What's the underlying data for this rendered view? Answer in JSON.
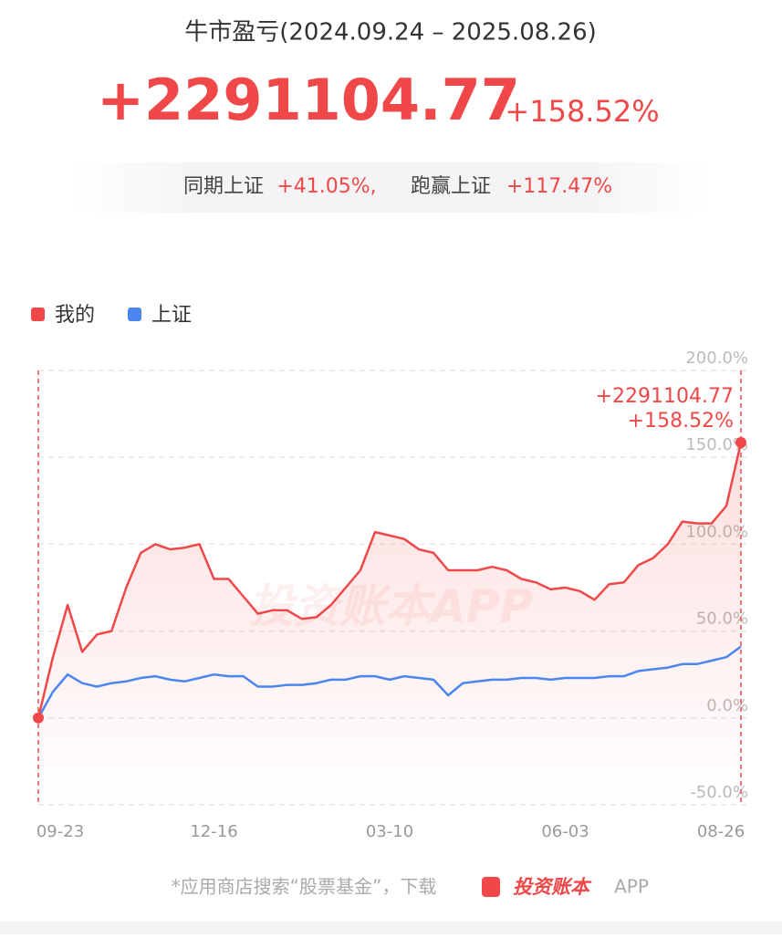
{
  "header": {
    "title": "牛市盈亏(2024.09.24 – 2025.08.26)",
    "profit": "+2291104.77",
    "return": "+158.52%",
    "benchmark_label": "同期上证",
    "benchmark_return": "+41.05%,",
    "excess_label": "跑赢上证",
    "excess_return": "+117.47%"
  },
  "chart_data": {
    "type": "line",
    "categories": [
      "09-23",
      null,
      null,
      null,
      null,
      null,
      null,
      null,
      null,
      null,
      null,
      null,
      "12-16",
      null,
      null,
      null,
      null,
      null,
      null,
      null,
      null,
      null,
      null,
      null,
      "03-10",
      null,
      null,
      null,
      null,
      null,
      null,
      null,
      null,
      null,
      null,
      null,
      "06-03",
      null,
      null,
      null,
      null,
      null,
      null,
      null,
      null,
      null,
      null,
      null,
      "08-26"
    ],
    "series": [
      {
        "name": "我的",
        "color": "#f04848",
        "values": [
          0,
          35,
          65,
          38,
          48,
          50,
          75,
          95,
          100,
          97,
          98,
          100,
          80,
          80,
          70,
          60,
          62,
          62,
          57,
          58,
          65,
          75,
          85,
          107,
          105,
          103,
          97,
          95,
          85,
          85,
          85,
          87,
          85,
          80,
          78,
          74,
          75,
          73,
          68,
          77,
          78,
          88,
          92,
          100,
          113,
          112,
          112,
          122,
          158.52
        ],
        "value_labels": [
          null,
          null,
          null,
          null,
          null,
          null,
          null,
          null,
          null,
          null,
          null,
          null,
          null,
          null,
          null,
          null,
          null,
          null,
          null,
          null,
          null,
          null,
          null,
          null,
          null,
          null,
          null,
          null,
          null,
          null,
          null,
          null,
          null,
          null,
          null,
          null,
          null,
          null,
          null,
          null,
          null,
          null,
          null,
          null,
          null,
          null,
          null,
          null,
          "+158.52%"
        ]
      },
      {
        "name": "上证",
        "color": "#4b86f0",
        "values": [
          0,
          15,
          25,
          20,
          18,
          20,
          21,
          23,
          24,
          22,
          21,
          23,
          25,
          24,
          24,
          18,
          18,
          19,
          19,
          20,
          22,
          22,
          24,
          24,
          22,
          24,
          23,
          22,
          13,
          20,
          21,
          22,
          22,
          23,
          23,
          22,
          23,
          23,
          23,
          24,
          24,
          27,
          28,
          29,
          31,
          31,
          33,
          35,
          41.05
        ]
      }
    ],
    "end_annotation": "+2291104.77",
    "ylim": [
      -50,
      200
    ],
    "yticks": [
      {
        "value": -50,
        "label": "-50.0%"
      },
      {
        "value": 0,
        "label": "0.0%"
      },
      {
        "value": 50,
        "label": "50.0%"
      },
      {
        "value": 100,
        "label": "100.0%"
      },
      {
        "value": 150,
        "label": "150.0%"
      },
      {
        "value": 200,
        "label": "200.0%"
      }
    ],
    "grid": true,
    "legend": "top-left",
    "watermark": "投资账本APP"
  },
  "footer": {
    "text": "*应用商店搜索“股票基金”，下载",
    "brand": "投资账本",
    "suffix": "APP"
  }
}
